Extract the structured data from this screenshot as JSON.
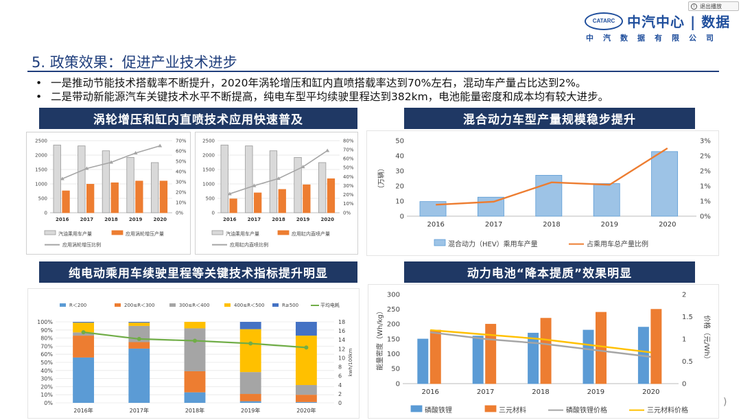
{
  "topbar": {
    "exit_label": "退出播放"
  },
  "logo": {
    "badge": "CATARC",
    "main": "中汽中心 | 数据",
    "sub": "中汽数据有限公司"
  },
  "page": {
    "title": "5. 政策效果：促进产业技术进步",
    "bullets": [
      "一是推动节能技术搭载率不断提升，2020年涡轮增压和缸内直喷搭载率达到70%左右，混动车产量占比达到2%。",
      "二是带动新能源汽车关键技术水平不断提高，纯电车型平均续驶里程达到382km，电池能量密度和成本均有较大进步。"
    ]
  },
  "sections": {
    "turbo": "涡轮增压和缸内直喷技术应用快速普及",
    "hybrid": "混合动力车型产量规模稳步提升",
    "bev": "纯电动乘用车续驶里程等关键技术指标提升明显",
    "battery": "动力电池“降本提质”效果明显"
  },
  "colors": {
    "header_bg": "#1f3864",
    "gray_bar": "#d9d9d9",
    "orange": "#ed7d31",
    "blue": "#5b9bd5",
    "gray_line": "#a5a5a5",
    "yellow": "#ffc000",
    "green": "#70ad47"
  },
  "chart_data": [
    {
      "id": "turbo",
      "type": "bar",
      "categories": [
        "2016",
        "2017",
        "2018",
        "2019",
        "2020"
      ],
      "y_ticks": [
        "0",
        "500",
        "1000",
        "1500",
        "2000",
        "2500"
      ],
      "y2_ticks": [
        "0%",
        "10%",
        "20%",
        "30%",
        "40%",
        "50%",
        "60%",
        "70%"
      ],
      "ylim": [
        0,
        2500
      ],
      "y2lim": [
        0,
        0.7
      ],
      "series": [
        {
          "name": "汽油乘用车产量",
          "kind": "bar",
          "axis": "left",
          "values": [
            2350,
            2320,
            2150,
            1920,
            1740
          ]
        },
        {
          "name": "应用涡轮增压产量",
          "kind": "bar",
          "axis": "left",
          "values": [
            760,
            990,
            1040,
            1100,
            1100
          ]
        },
        {
          "name": "应用涡轮增压比例",
          "kind": "line",
          "axis": "right",
          "values": [
            0.33,
            0.43,
            0.49,
            0.58,
            0.65
          ]
        }
      ]
    },
    {
      "id": "gdi",
      "type": "bar",
      "categories": [
        "2016",
        "2017",
        "2018",
        "2019",
        "2020"
      ],
      "y_ticks": [
        "0",
        "500",
        "1000",
        "1500",
        "2000",
        "2500"
      ],
      "y2_ticks": [
        "0%",
        "10%",
        "20%",
        "30%",
        "40%",
        "50%",
        "60%",
        "70%",
        "80%"
      ],
      "ylim": [
        0,
        2500
      ],
      "y2lim": [
        0,
        0.8
      ],
      "series": [
        {
          "name": "汽油乘用车产量",
          "kind": "bar",
          "axis": "left",
          "values": [
            2350,
            2320,
            2150,
            1920,
            1740
          ]
        },
        {
          "name": "应用缸内直喷产量",
          "kind": "bar",
          "axis": "left",
          "values": [
            480,
            690,
            810,
            970,
            1180
          ]
        },
        {
          "name": "应用缸内直喷比例",
          "kind": "line",
          "axis": "right",
          "values": [
            0.21,
            0.3,
            0.38,
            0.51,
            0.69
          ]
        }
      ]
    },
    {
      "id": "hybrid",
      "type": "bar",
      "categories": [
        "2016",
        "2017",
        "2018",
        "2019",
        "2020"
      ],
      "ylabel": "（万辆）",
      "y_ticks": [
        "0",
        "10",
        "20",
        "30",
        "40",
        "50"
      ],
      "y2_ticks": [
        "0%",
        "1%",
        "1%",
        "2%",
        "2%",
        "3%"
      ],
      "ylim": [
        0,
        50
      ],
      "y2lim": [
        0,
        2.5
      ],
      "series": [
        {
          "name": "混合动力（HEV）乘用车产量",
          "kind": "bar",
          "axis": "left",
          "values": [
            9.7,
            12.6,
            27.1,
            21.6,
            42.8
          ]
        },
        {
          "name": "占乘用车总产量比例",
          "kind": "line",
          "axis": "right",
          "values": [
            0.38,
            0.48,
            1.12,
            1.04,
            2.25
          ]
        }
      ]
    },
    {
      "id": "bev",
      "type": "bar",
      "stacked": true,
      "categories": [
        "2016年",
        "2017年",
        "2018年",
        "2019年",
        "2020年"
      ],
      "ylabel": "kwh/100km",
      "y_ticks": [
        "0%",
        "10%",
        "20%",
        "30%",
        "40%",
        "50%",
        "60%",
        "70%",
        "80%",
        "90%",
        "100%"
      ],
      "y2_ticks": [
        "0",
        "2",
        "4",
        "6",
        "8",
        "10",
        "12",
        "14",
        "16",
        "18"
      ],
      "ylim": [
        0,
        1
      ],
      "y2lim": [
        0,
        18
      ],
      "series": [
        {
          "name": "R＜200",
          "kind": "bar",
          "values": [
            0.56,
            0.67,
            0.13,
            0.02,
            0.01
          ]
        },
        {
          "name": "200≤R＜300",
          "kind": "bar",
          "values": [
            0.27,
            0.08,
            0.26,
            0.09,
            0.09
          ]
        },
        {
          "name": "300≤R＜400",
          "kind": "bar",
          "values": [
            0.04,
            0.2,
            0.53,
            0.27,
            0.12
          ]
        },
        {
          "name": "400≤R＜500",
          "kind": "bar",
          "values": [
            0.12,
            0.04,
            0.08,
            0.53,
            0.61
          ]
        },
        {
          "name": "R≥500",
          "kind": "bar",
          "values": [
            0.01,
            0.01,
            0.0,
            0.09,
            0.17
          ]
        },
        {
          "name": "平均电耗",
          "kind": "line",
          "values": [
            15.7,
            14.2,
            13.8,
            13.2,
            12.3
          ]
        }
      ]
    },
    {
      "id": "battery",
      "type": "bar",
      "categories": [
        "2016",
        "2017",
        "2018",
        "2019",
        "2020"
      ],
      "ylabel": "能量密度（Wh/kg）",
      "y2label": "价格（元/Wh）",
      "y_ticks": [
        "0",
        "50",
        "100",
        "150",
        "200",
        "250",
        "300"
      ],
      "y2_ticks": [
        "0",
        "0.5",
        "1",
        "1.5",
        "2"
      ],
      "ylim": [
        0,
        300
      ],
      "y2lim": [
        0,
        2
      ],
      "series": [
        {
          "name": "磷酸铁锂",
          "kind": "bar",
          "axis": "left",
          "values": [
            150,
            160,
            170,
            180,
            190
          ]
        },
        {
          "name": "三元材料",
          "kind": "bar",
          "axis": "left",
          "values": [
            180,
            200,
            220,
            240,
            250
          ]
        },
        {
          "name": "磷酸铁锂价格",
          "kind": "line",
          "axis": "right",
          "values": [
            1.15,
            1.0,
            0.9,
            0.75,
            0.6
          ]
        },
        {
          "name": "三元材料价格",
          "kind": "line",
          "axis": "right",
          "values": [
            1.2,
            1.1,
            1.0,
            0.85,
            0.7
          ]
        }
      ]
    }
  ]
}
